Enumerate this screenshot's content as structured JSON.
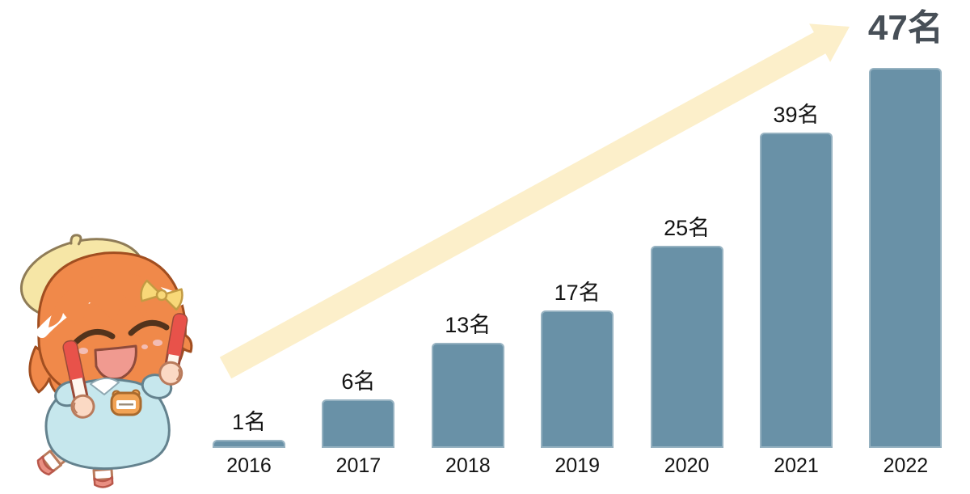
{
  "chart_data": {
    "type": "bar",
    "title": "",
    "categories": [
      "2016",
      "2017",
      "2018",
      "2019",
      "2020",
      "2021",
      "2022"
    ],
    "values": [
      1,
      6,
      13,
      17,
      25,
      39,
      47
    ],
    "value_labels": [
      "1名",
      "6名",
      "13名",
      "17名",
      "25名",
      "39名",
      "47名"
    ],
    "unit_suffix": "名",
    "ylim": [
      0,
      50
    ],
    "grid": false,
    "axes": "hidden",
    "legend": "none",
    "bar_color": "#6991A7",
    "label_color": "#141414",
    "highlight_last": true,
    "highlight_color": "#474F57",
    "trend_arrow": {
      "shape": "diagonal-up-right",
      "color": "#FCEFCA"
    }
  },
  "mascot": {
    "name": "cheering-chibi-girl",
    "colors": {
      "hair": "#F0894A",
      "beret": "#F6E6A6",
      "dress": "#C6E7ED",
      "stick_red": "#E8524A",
      "skin": "#FCEFE5"
    }
  }
}
